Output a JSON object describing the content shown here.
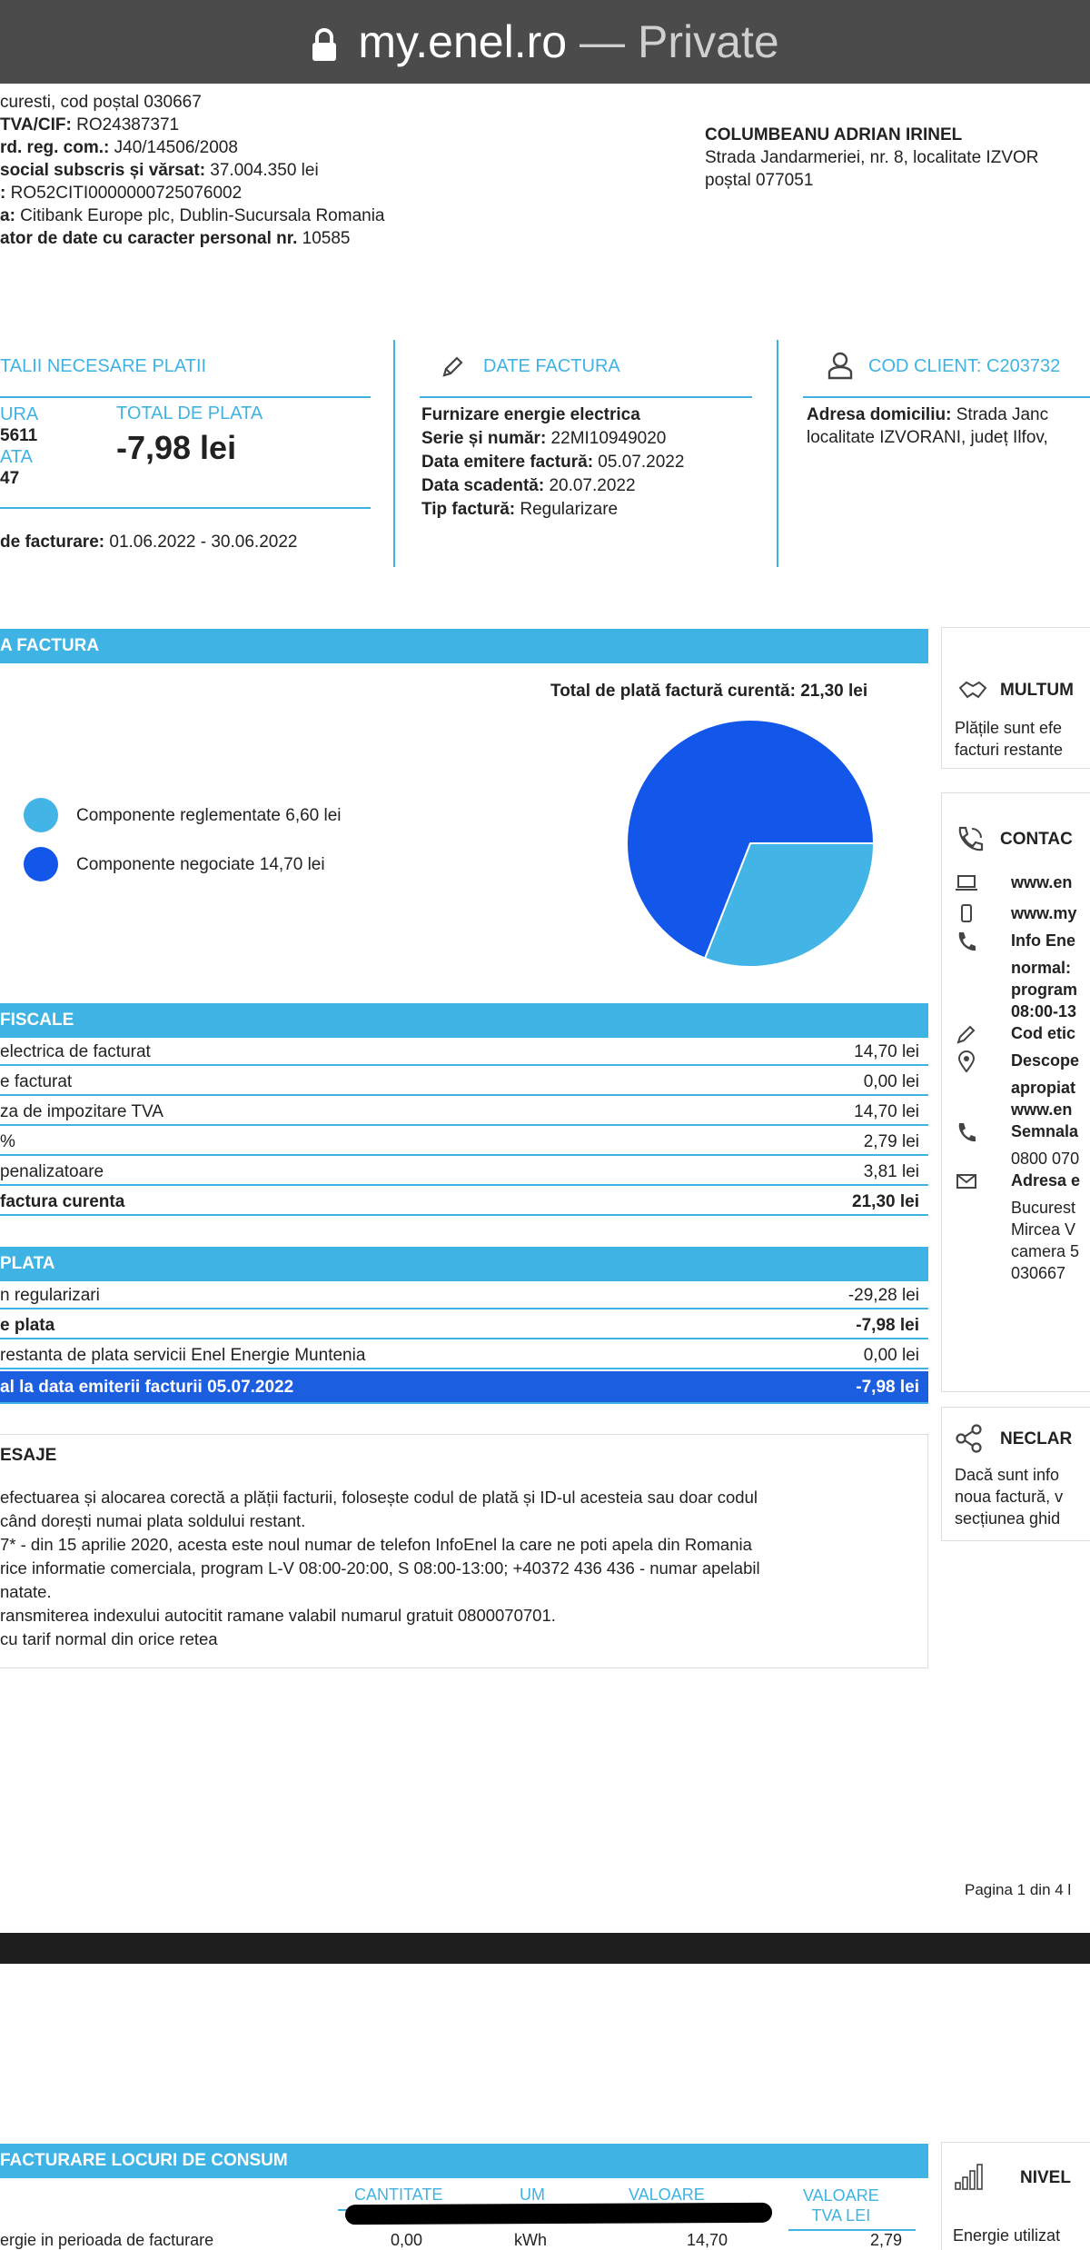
{
  "browser": {
    "host": "my.enel.ro",
    "separator": "—",
    "mode": "Private"
  },
  "supplier": {
    "lines": [
      {
        "label": "",
        "value": "curesti, cod poștal 030667"
      },
      {
        "label": "TVA/CIF:",
        "value": " RO24387371"
      },
      {
        "label": "rd. reg. com.:",
        "value": " J40/14506/2008"
      },
      {
        "label": "social subscris și vărsat:",
        "value": " 37.004.350 lei"
      },
      {
        "label": ":",
        "value": " RO52CITI0000000725076002"
      },
      {
        "label": "a:",
        "value": " Citibank Europe plc, Dublin-Sucursala Romania"
      },
      {
        "label": "ator de date cu caracter personal nr.",
        "value": " 10585"
      }
    ]
  },
  "customer": {
    "name": "COLUMBEANU ADRIAN IRINEL",
    "address1": "Strada Jandarmeriei, nr. 8, localitate IZVOR",
    "address2": "poștal 077051"
  },
  "payment_details": {
    "heading": "TALII NECESARE PLATII",
    "left_label1": "URA",
    "left_value1": "5611",
    "left_label2": "ATA",
    "left_value2": "47",
    "total_label": "TOTAL DE PLATA",
    "total_value": "-7,98 lei",
    "period_label": "de facturare:",
    "period_value": " 01.06.2022 - 30.06.2022"
  },
  "invoice_data": {
    "heading": "DATE FACTURA",
    "product": "Furnizare energie electrica",
    "series_label": "Serie și număr:",
    "series_value": " 22MI10949020",
    "issue_label": "Data emitere factură:",
    "issue_value": " 05.07.2022",
    "due_label": "Data scadentă:",
    "due_value": " 20.07.2022",
    "type_label": "Tip factură:",
    "type_value": " Regularizare"
  },
  "client": {
    "heading": "COD CLIENT: C203732",
    "addr_label": "Adresa domiciliu:",
    "addr_value1": " Strada Janc",
    "addr_value2": "localitate IZVORANI, județ Ilfov,"
  },
  "factura": {
    "heading": "A FACTURA",
    "total_current": "Total de plată factură curentă: 21,30 lei",
    "legend": [
      {
        "label": "Componente reglementate 6,60 lei",
        "color": "#42b4e6"
      },
      {
        "label": "Componente negociate 14,70 lei",
        "color": "#1256ea"
      }
    ]
  },
  "chart_data": {
    "type": "pie",
    "categories": [
      "Componente reglementate",
      "Componente negociate"
    ],
    "values": [
      6.6,
      14.7
    ],
    "unit": "lei",
    "colors": [
      "#42b4e6",
      "#1256ea"
    ]
  },
  "fiscal": {
    "heading": "FISCALE",
    "rows": [
      {
        "label": "electrica de facturat",
        "value": "14,70 lei",
        "bold": false
      },
      {
        "label": "e facturat",
        "value": "0,00 lei",
        "bold": false
      },
      {
        "label": "za de impozitare TVA",
        "value": "14,70 lei",
        "bold": false
      },
      {
        "label": "%",
        "value": "2,79 lei",
        "bold": false
      },
      {
        "label": "penalizatoare",
        "value": "3,81 lei",
        "bold": false
      },
      {
        "label": "factura curenta",
        "value": "21,30 lei",
        "bold": true
      }
    ]
  },
  "plata": {
    "heading": "PLATA",
    "rows": [
      {
        "label": "n regularizari",
        "value": "-29,28 lei",
        "bold": false
      },
      {
        "label": "e plata",
        "value": "-7,98 lei",
        "bold": true
      },
      {
        "label": "restanta de plata servicii Enel Energie Muntenia",
        "value": "0,00 lei",
        "bold": false
      }
    ],
    "total_row": {
      "label": "al la data emiterii facturii 05.07.2022",
      "value": "-7,98 lei"
    }
  },
  "messages": {
    "heading": "ESAJE",
    "lines": [
      "efectuarea și alocarea corectă a plății facturii, folosește codul de plată și ID-ul acesteia sau doar codul",
      "când dorești numai plata soldului restant.",
      "7* - din 15 aprilie 2020, acesta este noul numar de telefon InfoEnel la care ne poti apela din Romania",
      "rice informatie comerciala, program L-V 08:00-20:00, S 08:00-13:00; +40372 436 436 - numar apelabil",
      "natate.",
      "ransmiterea indexului autocitit ramane valabil numarul gratuit 0800070701.",
      "cu tarif normal din orice retea"
    ]
  },
  "side": {
    "multum": {
      "title": "MULTUM",
      "text1": "Plățile sunt efe",
      "text2": "facturi restante"
    },
    "contact": {
      "title": "CONTAC",
      "items": [
        {
          "icon": "laptop-icon",
          "text": "www.en"
        },
        {
          "icon": "mobile-icon",
          "text": "www.my"
        },
        {
          "icon": "phone-icon",
          "text": "Info Ene"
        },
        {
          "icon": "",
          "text": "normal:"
        },
        {
          "icon": "",
          "text": "program"
        },
        {
          "icon": "",
          "text": "08:00-13"
        },
        {
          "icon": "pencil-icon",
          "text": "Cod etic"
        },
        {
          "icon": "location-pin-icon",
          "text": "Descope"
        },
        {
          "icon": "",
          "text": "apropiat"
        },
        {
          "icon": "",
          "text": "www.en"
        },
        {
          "icon": "phone-icon",
          "text": "Semnala"
        },
        {
          "icon": "",
          "text": "0800 070"
        },
        {
          "icon": "mail-icon",
          "text": "Adresa e"
        },
        {
          "icon": "",
          "text": "Bucurest"
        },
        {
          "icon": "",
          "text": "Mircea V"
        },
        {
          "icon": "",
          "text": "camera 5"
        },
        {
          "icon": "",
          "text": "030667"
        }
      ]
    },
    "neclar": {
      "title": "NECLAR",
      "lines": [
        "Dacă sunt info",
        "noua factură, v",
        "secțiunea ghid"
      ]
    }
  },
  "footer": {
    "page": "Pagina 1 din 4 l"
  },
  "page2": {
    "heading": "FACTURARE LOCURI DE CONSUM",
    "columns": [
      "CANTITATE",
      "UM",
      "VALOARE",
      "VALOARE TVA LEI"
    ],
    "col4_line1": "VALOARE",
    "col4_line2": "TVA LEI",
    "row_partial": {
      "label": "ergie in perioada de facturare",
      "qty": "0,00",
      "um": "kWh",
      "val": "14,70",
      "tva": "2,79"
    },
    "side_title": "NIVEL",
    "side_text": "Energie utilizat"
  }
}
